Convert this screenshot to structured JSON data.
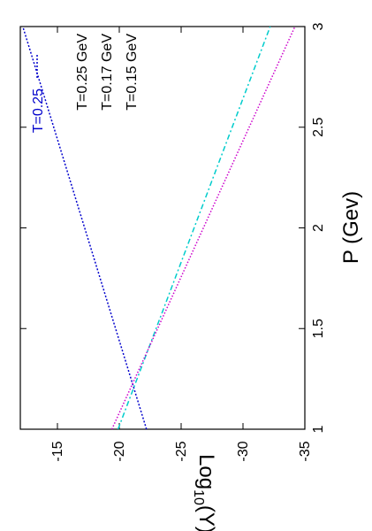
{
  "chart_data": {
    "type": "line",
    "title": "",
    "xlabel": "P (Gev)",
    "ylabel_main": "Log",
    "ylabel_sub": "10",
    "ylabel_tail": "(Y)",
    "xlim": [
      1,
      3
    ],
    "ylim": [
      -35,
      -12
    ],
    "x_ticks": [
      1,
      1.5,
      2,
      2.5,
      3
    ],
    "x_tick_labels": [
      "1",
      "1.5",
      "2",
      "2.5",
      "3"
    ],
    "y_ticks": [
      -35,
      -30,
      -25,
      -20,
      -15
    ],
    "y_tick_labels": [
      "-35",
      "-30",
      "-25",
      "-20",
      "-15"
    ],
    "grid": false,
    "legend_placement": "top-right",
    "key_label": "T=0.25",
    "series": [
      {
        "name": "T=0.25 GeV",
        "color": "#0000cc",
        "dash": "2,2",
        "x": [
          1,
          3
        ],
        "y": [
          -22.2,
          -12.2
        ]
      },
      {
        "name": "T=0.17 GeV",
        "color": "#00cccc",
        "dash": "6,3,2,3",
        "x": [
          1,
          3
        ],
        "y": [
          -19.9,
          -32.2
        ]
      },
      {
        "name": "T=0.15 GeV",
        "color": "#cc00cc",
        "dash": "1.5,2",
        "x": [
          1,
          3
        ],
        "y": [
          -19.4,
          -34.2
        ]
      }
    ]
  }
}
